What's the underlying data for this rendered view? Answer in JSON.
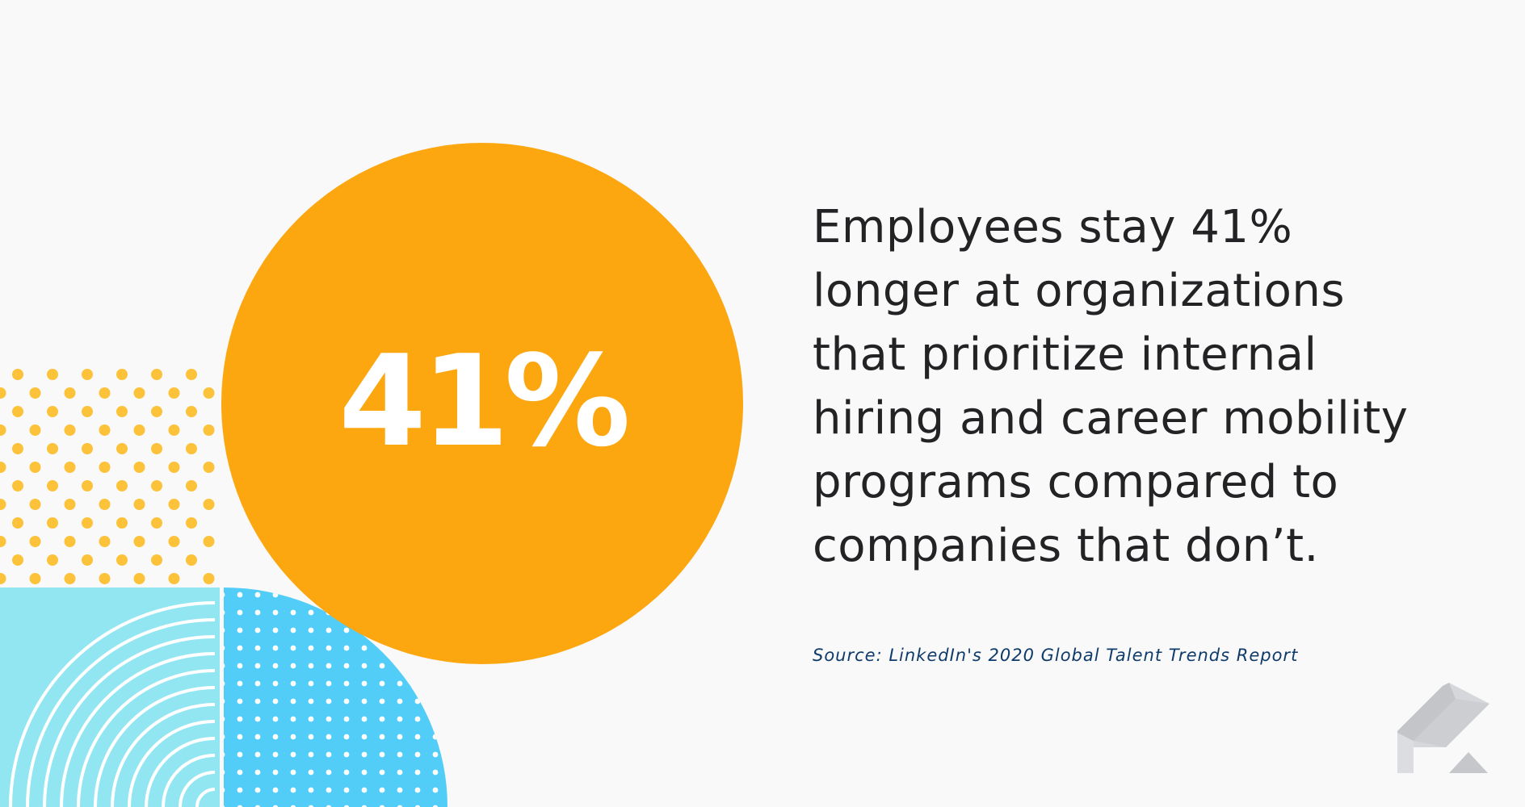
{
  "stat": {
    "value": "41%"
  },
  "headline": {
    "lines": [
      "Employees stay 41%",
      "longer at organizations",
      "that prioritize internal",
      "hiring and career mobility",
      "programs compared to",
      "companies that don’t."
    ]
  },
  "source": {
    "text": "Source: LinkedIn's 2020 Global Talent Trends Report"
  },
  "colors": {
    "background": "#f9f9f9",
    "circle": "#fca610",
    "stat_text": "#ffffff",
    "headline_text": "#232326",
    "source_text": "#0f3b6b",
    "dots_yellow": "#fcc23a",
    "panel_light_blue": "#92e6f2",
    "panel_blue": "#52cdf8",
    "logo_gray": "#c9cace"
  },
  "icons": {
    "logo": "brand-logo-icon"
  }
}
